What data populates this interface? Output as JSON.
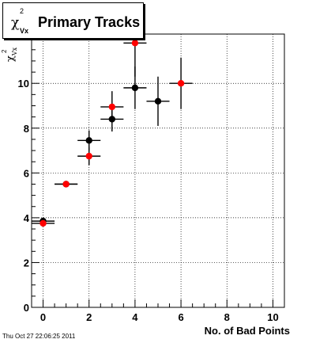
{
  "chart_data": {
    "type": "scatter",
    "title": "Primary Tracks",
    "title_prefix": "χ",
    "title_sup": "2",
    "title_sub": "Vx",
    "ylabel_main": "χ",
    "ylabel_sup": "2",
    "ylabel_sub": "Vx",
    "xlabel": "No. of Bad Points",
    "xlim": [
      -0.5,
      10.5
    ],
    "ylim": [
      0,
      12.2
    ],
    "xticks": [
      0,
      2,
      4,
      6,
      8,
      10
    ],
    "yticks": [
      0,
      2,
      4,
      6,
      8,
      10
    ],
    "grid": true,
    "series": [
      {
        "color": "#000000",
        "points": [
          {
            "x": 0,
            "y": 3.85,
            "xerr": 0.5,
            "yerr": 0.12
          },
          {
            "x": 1,
            "y": 5.5,
            "xerr": 0.5,
            "yerr": 0.12
          },
          {
            "x": 2,
            "y": 7.45,
            "xerr": 0.5,
            "yerr": 0.45
          },
          {
            "x": 3,
            "y": 8.4,
            "xerr": 0.5,
            "yerr": 0.55
          },
          {
            "x": 4,
            "y": 9.8,
            "xerr": 0.5,
            "yerr": 0.95
          },
          {
            "x": 5,
            "y": 9.2,
            "xerr": 0.5,
            "yerr": 1.1
          }
        ]
      },
      {
        "color": "#ff0000",
        "points": [
          {
            "x": 0,
            "y": 3.75,
            "xerr": 0.5,
            "yerr": 0.12
          },
          {
            "x": 1,
            "y": 5.5,
            "xerr": 0.5,
            "yerr": 0.12
          },
          {
            "x": 2,
            "y": 6.75,
            "xerr": 0.5,
            "yerr": 0.4
          },
          {
            "x": 3,
            "y": 8.95,
            "xerr": 0.5,
            "yerr": 0.7
          },
          {
            "x": 4,
            "y": 11.8,
            "xerr": 0.5,
            "yerr": 1.5
          },
          {
            "x": 6,
            "y": 10.0,
            "xerr": 0.5,
            "yerr": 1.15
          }
        ]
      }
    ]
  },
  "footer": {
    "timestamp": "Thu Oct 27 22:06:25 2011"
  }
}
